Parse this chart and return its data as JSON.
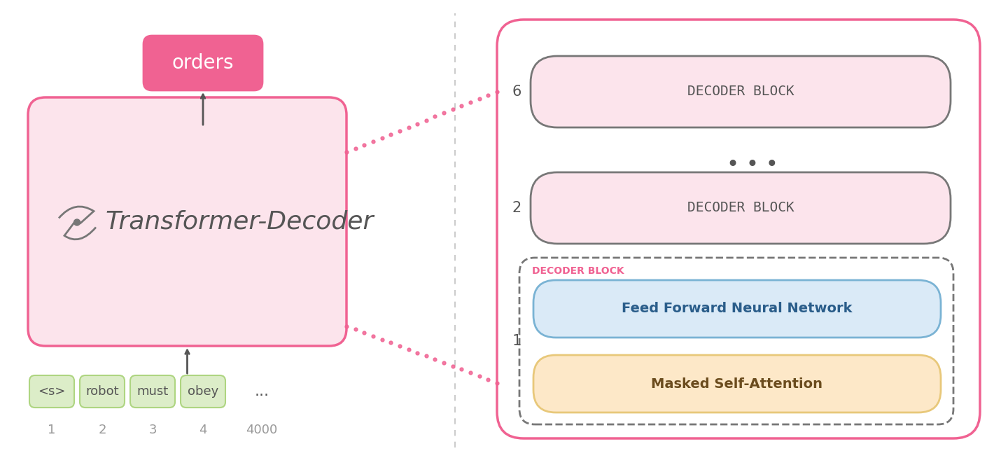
{
  "bg_color": "#ffffff",
  "pink_main": "#fce4ec",
  "pink_border": "#f06292",
  "pink_bright": "#f72585",
  "green_box": "#dcedc8",
  "green_border": "#aed581",
  "blue_box": "#daeaf7",
  "blue_border": "#7ab3d4",
  "peach_box": "#fde8c8",
  "peach_border": "#e8c87a",
  "gray_border": "#777777",
  "gray_text": "#999999",
  "dark_gray": "#555555",
  "orders_box": "#f06292",
  "orders_text": "#ffffff",
  "transformer_text": "Transformer-Decoder",
  "transformer_fontsize": 26,
  "input_tokens": [
    "<s>",
    "robot",
    "must",
    "obey",
    "..."
  ],
  "input_indices": [
    "1",
    "2",
    "3",
    "4",
    "4000"
  ],
  "decoder_block_label": "DECODER BLOCK",
  "decoder_block_text": "DECODER BLOCK",
  "ffnn_text": "Feed Forward Neural Network",
  "msa_text": "Masked Self-Attention",
  "label_6": "6",
  "label_2": "2",
  "label_1": "1",
  "dots_text": "• • •",
  "orders_label": "orders",
  "ffnn_text_color": "#2a5d8a",
  "msa_text_color": "#6b4c1e"
}
